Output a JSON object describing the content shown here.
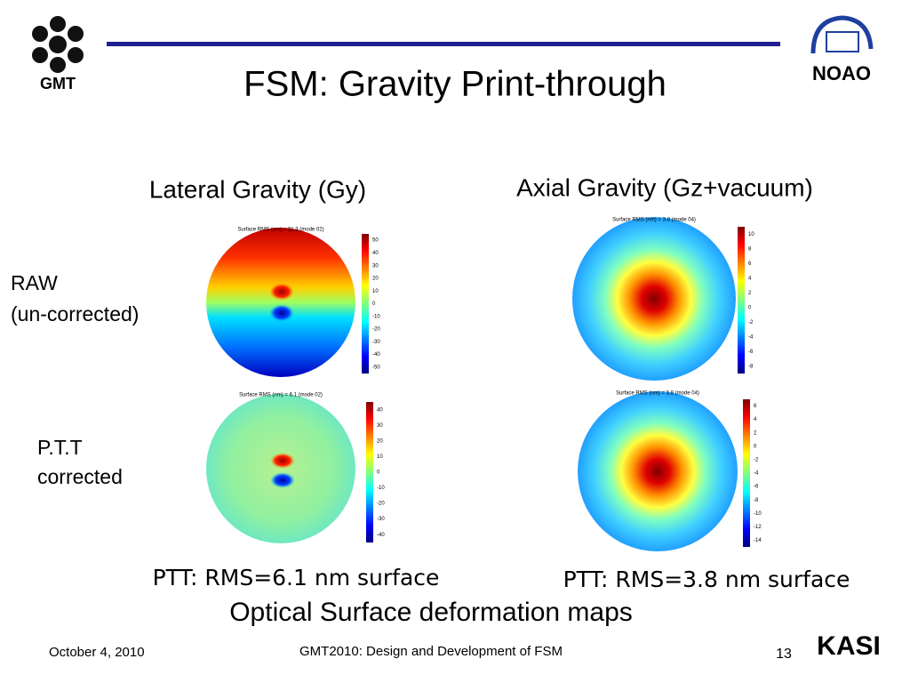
{
  "header": {
    "title": "FSM: Gravity Print-through",
    "left_logo": "GMT",
    "right_logo": "NOAO"
  },
  "columns": [
    "Lateral Gravity (Gy)",
    "Axial  Gravity (Gz+vacuum)"
  ],
  "rows": [
    [
      "RAW",
      "(un-corrected)"
    ],
    [
      "P.T.T",
      "corrected"
    ]
  ],
  "maps": [
    {
      "title": "Surface RMS (nm) =   31.3 (mode 02)",
      "colorbar": [
        "50",
        "40",
        "30",
        "20",
        "10",
        "0",
        "-10",
        "-20",
        "-30",
        "-40",
        "-50"
      ]
    },
    {
      "title": "Surface RMS (nm) =   6.1 (mode 02)",
      "colorbar": [
        "40",
        "30",
        "20",
        "10",
        "0",
        "-10",
        "-20",
        "-30",
        "-40"
      ]
    },
    {
      "title": "Surface RMS (nm) =   3.8 (mode 04)",
      "colorbar": [
        "10",
        "8",
        "6",
        "4",
        "2",
        "0",
        "-2",
        "-4",
        "-6",
        "-8"
      ]
    },
    {
      "title": "Surface RMS (nm) =   3.8 (mode 04)",
      "colorbar": [
        "6",
        "4",
        "2",
        "0",
        "-2",
        "-4",
        "-6",
        "-8",
        "-10",
        "-12",
        "-14"
      ]
    }
  ],
  "captions": [
    "PTT: RMS=6.1 nm surface",
    "PTT: RMS=3.8 nm surface"
  ],
  "subtitle": "Optical Surface deformation maps",
  "footer": {
    "date": "October 4, 2010",
    "center": "GMT2010: Design and Development of FSM",
    "page": "13",
    "logo": "KASI"
  }
}
